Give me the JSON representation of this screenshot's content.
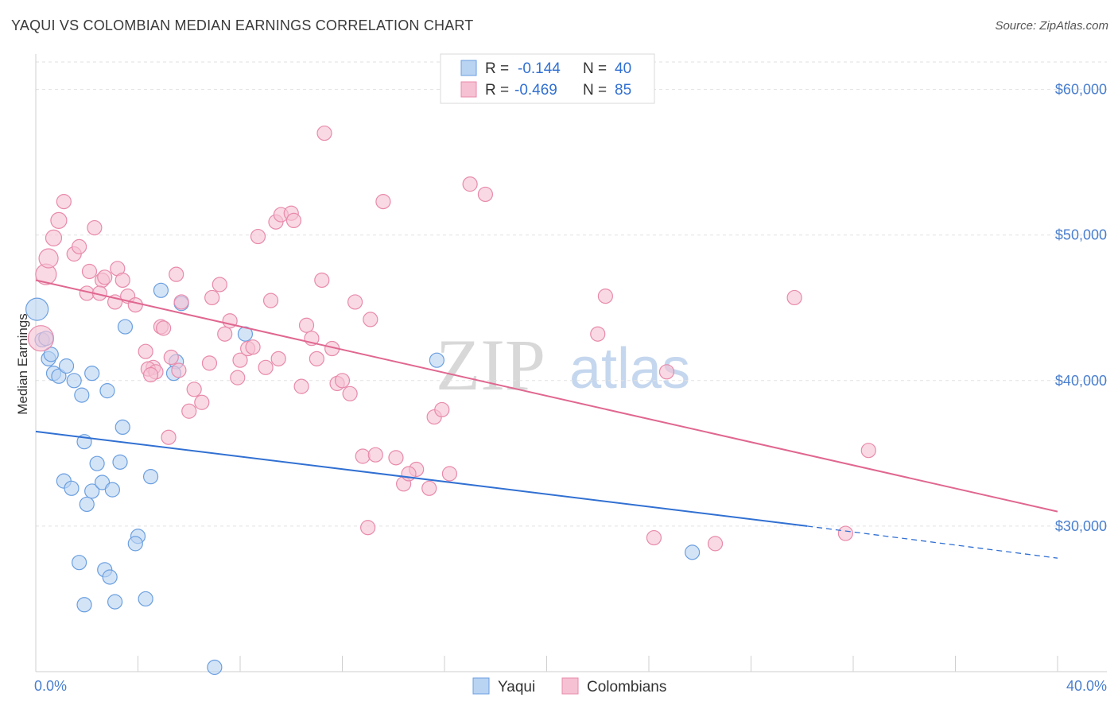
{
  "title": "YAQUI VS COLOMBIAN MEDIAN EARNINGS CORRELATION CHART",
  "source": "Source: ZipAtlas.com",
  "watermark": {
    "zip": "ZIP",
    "atlas": "atlas"
  },
  "legend": {
    "rows": [
      {
        "r_label": "R = ",
        "r_value": "-0.144",
        "n_label": "N = ",
        "n_value": "40"
      },
      {
        "r_label": "R = ",
        "r_value": "-0.469",
        "n_label": "N = ",
        "n_value": "85"
      }
    ]
  },
  "bottom_legend": [
    "Yaqui",
    "Colombians"
  ],
  "colors": {
    "yaqui_fill": "#b9d3f2",
    "yaqui_stroke": "#6a9fe0",
    "yaqui_line": "#3170d2",
    "col_fill": "#f6c1d3",
    "col_stroke": "#e88aab",
    "col_line": "#e06790",
    "tick": "#4a7fcf"
  },
  "chart_data": {
    "type": "scatter",
    "title": "YAQUI VS COLOMBIAN MEDIAN EARNINGS CORRELATION CHART",
    "xlabel": "",
    "ylabel": "Median Earnings",
    "xlim": [
      0,
      40
    ],
    "ylim": [
      20000,
      62000
    ],
    "x_tick_labels": [
      "0.0%",
      "40.0%"
    ],
    "y_ticks": [
      30000,
      40000,
      50000,
      60000
    ],
    "y_tick_labels": [
      "$30,000",
      "$40,000",
      "$50,000",
      "$60,000"
    ],
    "series": [
      {
        "name": "Yaqui",
        "r": -0.144,
        "n": 40,
        "trend": {
          "x0": 0,
          "y0": 36500,
          "x1": 30.2,
          "y1": 30000,
          "dash_x1": 40,
          "dash_y1": 27800
        },
        "points": [
          [
            0.05,
            44900,
            14
          ],
          [
            0.25,
            42800,
            9
          ],
          [
            0.5,
            41500,
            9
          ],
          [
            0.6,
            41800,
            9
          ],
          [
            0.7,
            40500,
            9
          ],
          [
            0.9,
            40300,
            9
          ],
          [
            1.2,
            41000,
            9
          ],
          [
            1.5,
            40000,
            9
          ],
          [
            1.8,
            39000,
            9
          ],
          [
            2.2,
            40500,
            9
          ],
          [
            2.8,
            39300,
            9
          ],
          [
            3.5,
            43700,
            9
          ],
          [
            0.4,
            42900,
            9
          ],
          [
            1.9,
            35800,
            9
          ],
          [
            3.4,
            36800,
            9
          ],
          [
            2.4,
            34300,
            9
          ],
          [
            3.3,
            34400,
            9
          ],
          [
            4.9,
            46200,
            9
          ],
          [
            5.7,
            45300,
            9
          ],
          [
            5.5,
            41300,
            9
          ],
          [
            5.4,
            40500,
            9
          ],
          [
            8.2,
            43200,
            9
          ],
          [
            15.7,
            41400,
            9
          ],
          [
            1.1,
            33100,
            9
          ],
          [
            1.4,
            32600,
            9
          ],
          [
            2.2,
            32400,
            9
          ],
          [
            2.6,
            33000,
            9
          ],
          [
            3.0,
            32500,
            9
          ],
          [
            2.0,
            31500,
            9
          ],
          [
            4.5,
            33400,
            9
          ],
          [
            4.0,
            29300,
            9
          ],
          [
            3.9,
            28800,
            9
          ],
          [
            1.7,
            27500,
            9
          ],
          [
            2.7,
            27000,
            9
          ],
          [
            2.9,
            26500,
            9
          ],
          [
            1.9,
            24600,
            9
          ],
          [
            3.1,
            24800,
            9
          ],
          [
            4.3,
            25000,
            9
          ],
          [
            7.0,
            20300,
            9
          ],
          [
            25.7,
            28200,
            9
          ]
        ]
      },
      {
        "name": "Colombians",
        "r": -0.469,
        "n": 85,
        "trend": {
          "x0": 0,
          "y0": 46900,
          "x1": 40,
          "y1": 31000
        },
        "points": [
          [
            0.2,
            42900,
            16
          ],
          [
            0.4,
            47300,
            13
          ],
          [
            0.5,
            48400,
            12
          ],
          [
            0.7,
            49800,
            10
          ],
          [
            0.9,
            51000,
            10
          ],
          [
            1.1,
            52300,
            9
          ],
          [
            1.5,
            48700,
            9
          ],
          [
            1.7,
            49200,
            9
          ],
          [
            2.3,
            50500,
            9
          ],
          [
            2.0,
            46000,
            9
          ],
          [
            2.1,
            47500,
            9
          ],
          [
            2.6,
            46900,
            9
          ],
          [
            2.7,
            47100,
            9
          ],
          [
            2.5,
            46000,
            9
          ],
          [
            3.2,
            47700,
            9
          ],
          [
            3.4,
            46900,
            9
          ],
          [
            3.6,
            45800,
            9
          ],
          [
            3.9,
            45200,
            9
          ],
          [
            3.1,
            45400,
            9
          ],
          [
            4.6,
            40900,
            9
          ],
          [
            4.4,
            40800,
            9
          ],
          [
            4.7,
            40600,
            9
          ],
          [
            4.5,
            40400,
            9
          ],
          [
            4.9,
            43700,
            9
          ],
          [
            5.0,
            43600,
            9
          ],
          [
            5.3,
            41600,
            9
          ],
          [
            5.6,
            40700,
            9
          ],
          [
            5.7,
            45400,
            9
          ],
          [
            5.5,
            47300,
            9
          ],
          [
            6.0,
            37900,
            9
          ],
          [
            6.2,
            39400,
            9
          ],
          [
            6.5,
            38500,
            9
          ],
          [
            6.8,
            41200,
            9
          ],
          [
            6.9,
            45700,
            9
          ],
          [
            7.2,
            46600,
            9
          ],
          [
            7.6,
            44100,
            9
          ],
          [
            7.4,
            43200,
            9
          ],
          [
            7.9,
            40200,
            9
          ],
          [
            8.0,
            41400,
            9
          ],
          [
            8.3,
            42200,
            9
          ],
          [
            8.5,
            42300,
            9
          ],
          [
            9.0,
            40900,
            9
          ],
          [
            9.2,
            45500,
            9
          ],
          [
            9.5,
            41500,
            9
          ],
          [
            8.7,
            49900,
            9
          ],
          [
            9.4,
            50900,
            9
          ],
          [
            9.6,
            51400,
            9
          ],
          [
            10.0,
            51500,
            9
          ],
          [
            10.1,
            51000,
            9
          ],
          [
            10.6,
            43800,
            9
          ],
          [
            10.8,
            42900,
            9
          ],
          [
            10.4,
            39600,
            9
          ],
          [
            11.0,
            41500,
            9
          ],
          [
            11.2,
            46900,
            9
          ],
          [
            11.6,
            42200,
            9
          ],
          [
            11.8,
            39800,
            9
          ],
          [
            12.3,
            39100,
            9
          ],
          [
            12.0,
            40000,
            9
          ],
          [
            12.5,
            45400,
            9
          ],
          [
            13.1,
            44200,
            9
          ],
          [
            11.3,
            57000,
            9
          ],
          [
            13.6,
            52300,
            9
          ],
          [
            12.8,
            34800,
            9
          ],
          [
            13.3,
            34900,
            9
          ],
          [
            14.1,
            34700,
            9
          ],
          [
            14.4,
            32900,
            9
          ],
          [
            14.9,
            33900,
            9
          ],
          [
            14.6,
            33600,
            9
          ],
          [
            15.4,
            32600,
            9
          ],
          [
            15.6,
            37500,
            9
          ],
          [
            15.9,
            38000,
            9
          ],
          [
            16.2,
            33600,
            9
          ],
          [
            17.0,
            53500,
            9
          ],
          [
            17.6,
            52800,
            9
          ],
          [
            22.3,
            45800,
            9
          ],
          [
            22.0,
            43200,
            9
          ],
          [
            24.7,
            40600,
            9
          ],
          [
            24.2,
            29200,
            9
          ],
          [
            26.6,
            28800,
            9
          ],
          [
            29.7,
            45700,
            9
          ],
          [
            32.6,
            35200,
            9
          ],
          [
            31.7,
            29500,
            9
          ],
          [
            13.0,
            29900,
            9
          ],
          [
            5.2,
            36100,
            9
          ],
          [
            4.3,
            42000,
            9
          ]
        ]
      }
    ]
  }
}
